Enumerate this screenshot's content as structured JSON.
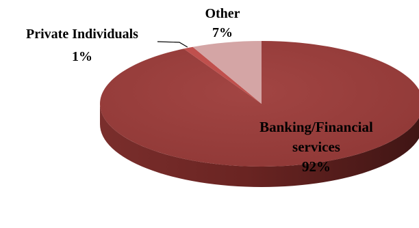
{
  "chart_data": {
    "type": "pie",
    "style": "3d",
    "slices": [
      {
        "label": "Banking/Financial services",
        "label_lines": [
          "Banking/Financial",
          "services"
        ],
        "value": 92,
        "value_text": "92%",
        "color": "#9A3F3D",
        "label_position": "inside"
      },
      {
        "label": "Private Individuals",
        "label_lines": [
          "Private Individuals"
        ],
        "value": 1,
        "value_text": "1%",
        "color": "#C0504D",
        "label_position": "outside-left"
      },
      {
        "label": "Other",
        "label_lines": [
          "Other"
        ],
        "value": 7,
        "value_text": "7%",
        "color": "#D4A5A5",
        "label_position": "outside-top"
      }
    ]
  }
}
